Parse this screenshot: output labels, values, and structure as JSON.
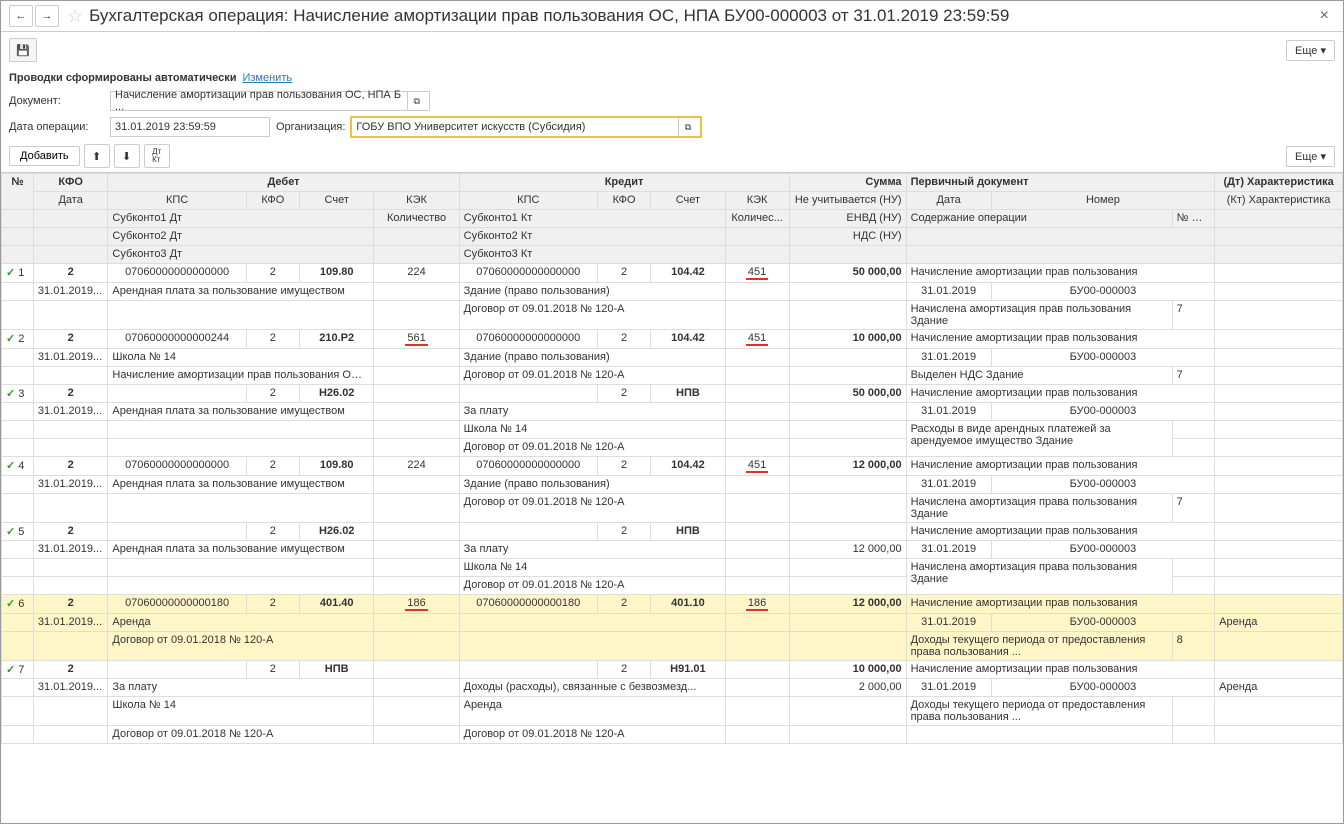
{
  "title": "Бухгалтерская операция: Начисление амортизации прав пользования ОС, НПА БУ00-000003 от 31.01.2019 23:59:59",
  "more_label": "Еще ▾",
  "auto_text": "Проводки сформированы автоматически",
  "change_link": "Изменить",
  "doc_label": "Документ:",
  "doc_value": "Начисление амортизации прав пользования ОС, НПА Б ...",
  "date_label": "Дата операции:",
  "date_value": "31.01.2019 23:59:59",
  "org_label": "Организация:",
  "org_value": "ГОБУ ВПО Университет искусств (Субсидия)",
  "add_label": "Добавить",
  "hdr": {
    "num": "№",
    "kfo": "КФО",
    "debet": "Дебет",
    "kredit": "Кредит",
    "summa": "Сумма",
    "primary": "Первичный документ",
    "dt_char": "(Дт) Характеристика",
    "data": "Дата",
    "kps": "КПС",
    "schet": "Счет",
    "kek": "КЭК",
    "ne_uch": "Не учитывается (НУ)",
    "nomer": "Номер",
    "kt_char": "(Кт) Характеристика",
    "sub1dt": "Субконто1 Дт",
    "kolvo": "Количество",
    "sub1kt": "Субконто1 Кт",
    "kolvo2": "Количес...",
    "envd": "ЕНВД (НУ)",
    "soderzh": "Содержание операции",
    "zho": "№ Ж/О",
    "sub2dt": "Субконто2 Дт",
    "sub2kt": "Субконто2 Кт",
    "nds": "НДС (НУ)",
    "sub3dt": "Субконто3 Дт",
    "sub3kt": "Субконто3 Кт"
  },
  "rows": [
    {
      "n": "1",
      "kfo": "2",
      "date": "31.01.2019...",
      "d_kps": "07060000000000000",
      "d_kfo": "2",
      "d_schet": "109.80",
      "d_kek": "224",
      "d_kek_red": false,
      "k_kps": "07060000000000000",
      "k_kfo": "2",
      "k_schet": "104.42",
      "k_kek": "451",
      "k_kek_red": true,
      "sum": "50 000,00",
      "prim": "Начисление амортизации прав пользования",
      "pdate": "31.01.2019",
      "pnum": "БУ00-000003",
      "d_sub1": "Арендная плата за пользование имуществом",
      "k_sub1": "Здание (право пользования)",
      "sod": "Начислена амортизация прав пользования Здание",
      "zho": "7",
      "k_sub2": "Договор от 09.01.2018 № 120-А",
      "dtc": "",
      "ktc": ""
    },
    {
      "n": "2",
      "kfo": "2",
      "date": "31.01.2019...",
      "d_kps": "07060000000000244",
      "d_kfo": "2",
      "d_schet": "210.Р2",
      "d_kek": "561",
      "d_kek_red": true,
      "k_kps": "07060000000000000",
      "k_kfo": "2",
      "k_schet": "104.42",
      "k_kek": "451",
      "k_kek_red": true,
      "sum": "10 000,00",
      "prim": "Начисление амортизации прав пользования",
      "pdate": "31.01.2019",
      "pnum": "БУ00-000003",
      "d_sub1": "Школа № 14",
      "k_sub1": "Здание (право пользования)",
      "d_sub2": "Начисление амортизации прав пользования ОС, ...",
      "k_sub2": "Договор от 09.01.2018 № 120-А",
      "sod": "Выделен НДС Здание",
      "zho": "7",
      "dtc": "",
      "ktc": ""
    },
    {
      "n": "3",
      "kfo": "2",
      "date": "31.01.2019...",
      "d_kps": "",
      "d_kfo": "2",
      "d_schet": "Н26.02",
      "d_kek": "",
      "d_kek_red": false,
      "k_kps": "",
      "k_kfo": "2",
      "k_schet": "НПВ",
      "k_kek": "",
      "k_kek_red": false,
      "sum": "50 000,00",
      "prim": "Начисление амортизации прав пользования",
      "pdate": "31.01.2019",
      "pnum": "БУ00-000003",
      "d_sub1": "Арендная плата за пользование имуществом",
      "k_sub1": "За плату",
      "k_sub2": "Школа № 14",
      "k_sub3": "Договор от 09.01.2018 № 120-А",
      "sod": "Расходы в виде арендных платежей за арендуемое имущество Здание",
      "zho": "",
      "dtc": "",
      "ktc": ""
    },
    {
      "n": "4",
      "kfo": "2",
      "date": "31.01.2019...",
      "d_kps": "07060000000000000",
      "d_kfo": "2",
      "d_schet": "109.80",
      "d_kek": "224",
      "d_kek_red": false,
      "k_kps": "07060000000000000",
      "k_kfo": "2",
      "k_schet": "104.42",
      "k_kek": "451",
      "k_kek_red": true,
      "sum": "12 000,00",
      "prim": "Начисление амортизации прав пользования",
      "pdate": "31.01.2019",
      "pnum": "БУ00-000003",
      "d_sub1": "Арендная плата за пользование имуществом",
      "k_sub1": "Здание (право пользования)",
      "k_sub2": "Договор от 09.01.2018 № 120-А",
      "sod": "Начислена амортизация права пользования Здание",
      "zho": "7",
      "dtc": "",
      "ktc": ""
    },
    {
      "n": "5",
      "kfo": "2",
      "date": "31.01.2019...",
      "d_kps": "",
      "d_kfo": "2",
      "d_schet": "Н26.02",
      "d_kek": "",
      "d_kek_red": false,
      "k_kps": "",
      "k_kfo": "2",
      "k_schet": "НПВ",
      "k_kek": "",
      "k_kek_red": false,
      "sum": "",
      "prim": "Начисление амортизации прав пользования",
      "pdate": "31.01.2019",
      "pnum": "БУ00-000003",
      "d_sub1": "Арендная плата за пользование имуществом",
      "k_sub1": "За плату",
      "k_sub2": "Школа № 14",
      "k_sub3": "Договор от 09.01.2018 № 120-А",
      "sod": "Начислена амортизация права пользования Здание",
      "zho": "",
      "sum2": "12 000,00",
      "dtc": "",
      "ktc": ""
    },
    {
      "n": "6",
      "kfo": "2",
      "date": "31.01.2019...",
      "d_kps": "07060000000000180",
      "d_kfo": "2",
      "d_schet": "401.40",
      "d_kek": "186",
      "d_kek_red": true,
      "k_kps": "07060000000000180",
      "k_kfo": "2",
      "k_schet": "401.10",
      "k_kek": "186",
      "k_kek_red": true,
      "sum": "12 000,00",
      "prim": "Начисление амортизации прав пользования",
      "pdate": "31.01.2019",
      "pnum": "БУ00-000003",
      "d_sub1": "Аренда",
      "d_sub2": "Договор от 09.01.2018 № 120-А",
      "sod": "Доходы текущего периода от предоставления права пользования ...",
      "zho": "8",
      "ktc": "Аренда",
      "hl": true
    },
    {
      "n": "7",
      "kfo": "2",
      "date": "31.01.2019...",
      "d_kps": "",
      "d_kfo": "2",
      "d_schet": "НПВ",
      "d_kek": "",
      "d_kek_red": false,
      "k_kps": "",
      "k_kfo": "2",
      "k_schet": "Н91.01",
      "k_kek": "",
      "k_kek_red": false,
      "sum": "10 000,00",
      "prim": "Начисление амортизации прав пользования",
      "pdate": "31.01.2019",
      "pnum": "БУ00-000003",
      "d_sub1": "За плату",
      "d_sub2": "Школа № 14",
      "d_sub3": "Договор от 09.01.2018 № 120-А",
      "k_sub1": "Доходы (расходы), связанные с безвозмезд...",
      "k_sub2": "Аренда",
      "k_sub3": "Договор от 09.01.2018 № 120-А",
      "sod": "Доходы текущего периода от предоставления права пользования ...",
      "zho": "",
      "sum2": "2 000,00",
      "ktc": "Аренда"
    }
  ]
}
